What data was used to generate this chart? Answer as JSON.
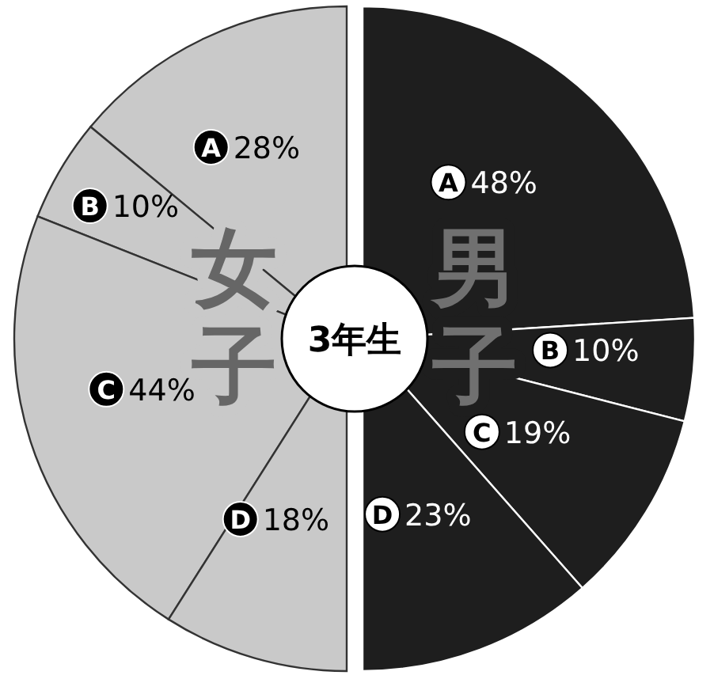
{
  "chart_data": [
    {
      "type": "pie",
      "title": "女子",
      "categories": [
        "A",
        "B",
        "C",
        "D"
      ],
      "values": [
        28,
        10,
        44,
        18
      ],
      "colors": [
        "#c9c9c9",
        "#c9c9c9",
        "#c9c9c9",
        "#c9c9c9"
      ],
      "data_labels": true,
      "value_labels": [
        "28%",
        "10%",
        "44%",
        "18%"
      ],
      "annotations": [
        "3年生"
      ]
    },
    {
      "type": "pie",
      "title": "男子",
      "categories": [
        "A",
        "B",
        "C",
        "D"
      ],
      "values": [
        48,
        10,
        19,
        23
      ],
      "colors": [
        "#1e1e1e",
        "#1e1e1e",
        "#1e1e1e",
        "#1e1e1e"
      ],
      "data_labels": true,
      "value_labels": [
        "48%",
        "10%",
        "19%",
        "23%"
      ]
    }
  ]
}
